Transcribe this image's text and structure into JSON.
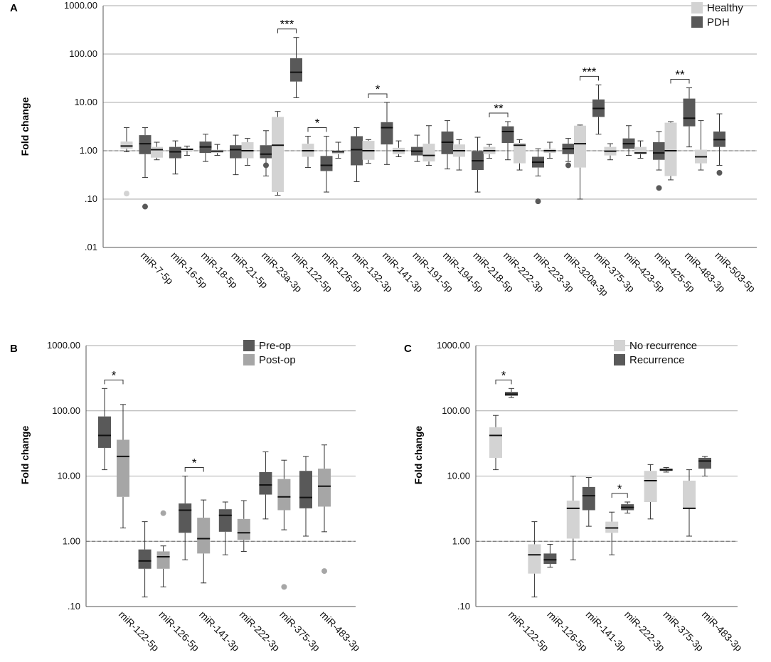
{
  "colors": {
    "light": "#d3d3d3",
    "dark": "#595959",
    "mid": "#a6a6a6",
    "axis": "#555555",
    "grid": "#aaaaaa"
  },
  "chart_data": [
    {
      "panel": "A",
      "type": "box",
      "ylabel": "Fold change",
      "yscale": "log",
      "ylim": [
        0.01,
        1000
      ],
      "yticks": [
        1000,
        100,
        10,
        1,
        0.1,
        0.01
      ],
      "yticklabels": [
        "1000.00",
        "100.00",
        "10.00",
        "1.00",
        ".10",
        ".01"
      ],
      "reference_line": 1,
      "legend": [
        {
          "name": "Healthy",
          "color": "light"
        },
        {
          "name": "PDH",
          "color": "dark"
        }
      ],
      "categories": [
        "miR-7-5p",
        "miR-16-5p",
        "miR-18-5p",
        "miR-21-5p",
        "miR-23a-3p",
        "miR-122-5p",
        "miR-126-5p",
        "miR-132-3p",
        "miR-141-3p",
        "miR-191-5p",
        "miR-194-5p",
        "miR-218-5p",
        "miR-222-3p",
        "miR-223-3p",
        "miR-320a-3p",
        "miR-375-3p",
        "miR-423-5p",
        "miR-425-5p",
        "miR-483-3p",
        "miR-503-5p"
      ],
      "series": [
        {
          "name": "Healthy",
          "color": "light",
          "boxes": [
            [
              0.95,
              1.1,
              1.25,
              1.55,
              3.0
            ],
            [
              0.65,
              0.72,
              1.05,
              1.2,
              1.5
            ],
            [
              0.8,
              1.0,
              1.07,
              1.12,
              1.25
            ],
            [
              0.8,
              0.9,
              0.98,
              1.05,
              1.35
            ],
            [
              0.5,
              0.7,
              1.0,
              1.5,
              1.8
            ],
            [
              0.12,
              0.14,
              1.3,
              5.0,
              6.5
            ],
            [
              0.45,
              0.75,
              1.0,
              1.4,
              2.0
            ],
            [
              0.7,
              0.85,
              0.95,
              1.0,
              1.5
            ],
            [
              0.55,
              0.65,
              1.0,
              1.6,
              1.7
            ],
            [
              0.75,
              0.85,
              1.0,
              1.15,
              1.6
            ],
            [
              0.5,
              0.6,
              0.8,
              1.4,
              3.3
            ],
            [
              0.4,
              0.75,
              1.0,
              1.35,
              1.7
            ],
            [
              0.7,
              0.85,
              1.0,
              1.2,
              1.35
            ],
            [
              0.4,
              0.55,
              1.3,
              1.45,
              1.7
            ],
            [
              0.7,
              0.9,
              1.0,
              1.1,
              1.5
            ],
            [
              0.1,
              0.45,
              1.4,
              3.3,
              3.4
            ],
            [
              0.65,
              0.8,
              0.98,
              1.2,
              1.4
            ],
            [
              0.7,
              0.85,
              0.9,
              1.2,
              1.6
            ],
            [
              0.25,
              0.3,
              1.0,
              3.8,
              4.0
            ],
            [
              0.4,
              0.55,
              0.75,
              1.05,
              4.2
            ]
          ],
          "outliers": [
            [
              0.13
            ],
            [],
            [],
            [],
            [],
            [],
            [],
            [],
            [],
            [],
            [],
            [],
            [],
            [],
            [],
            [],
            [],
            [],
            [],
            []
          ]
        },
        {
          "name": "PDH",
          "color": "dark",
          "boxes": [
            [
              0.28,
              0.85,
              1.4,
              2.1,
              3.0
            ],
            [
              0.33,
              0.7,
              0.95,
              1.2,
              1.6
            ],
            [
              0.6,
              0.9,
              1.2,
              1.55,
              2.2
            ],
            [
              0.32,
              0.7,
              1.05,
              1.3,
              2.1
            ],
            [
              0.3,
              0.7,
              0.85,
              1.3,
              2.6
            ],
            [
              12.5,
              27,
              42,
              82,
              220
            ],
            [
              0.14,
              0.38,
              0.5,
              0.78,
              2.0
            ],
            [
              0.23,
              0.5,
              1.05,
              2.0,
              3.0
            ],
            [
              0.52,
              1.35,
              3.0,
              3.9,
              10
            ],
            [
              0.6,
              0.8,
              0.98,
              1.2,
              2.1
            ],
            [
              0.42,
              0.85,
              1.5,
              2.5,
              4.2
            ],
            [
              0.14,
              0.4,
              0.62,
              0.98,
              1.9
            ],
            [
              0.65,
              1.45,
              2.5,
              3.2,
              4.0
            ],
            [
              0.3,
              0.45,
              0.58,
              0.75,
              1.1
            ],
            [
              0.6,
              0.85,
              1.1,
              1.4,
              1.8
            ],
            [
              2.2,
              5.0,
              7.5,
              11.5,
              23
            ],
            [
              0.8,
              1.1,
              1.4,
              1.8,
              3.3
            ],
            [
              0.4,
              0.65,
              0.9,
              1.5,
              2.5
            ],
            [
              1.2,
              3.2,
              4.7,
              12,
              20
            ],
            [
              0.5,
              1.2,
              1.7,
              2.5,
              5.8
            ]
          ],
          "outliers": [
            [
              0.07
            ],
            [],
            [],
            [],
            [
              0.5
            ],
            [],
            [],
            [],
            [],
            [],
            [],
            [],
            [],
            [
              0.09
            ],
            [
              0.5
            ],
            [],
            [],
            [
              0.17
            ],
            [],
            [
              0.35
            ]
          ]
        }
      ],
      "significance": [
        {
          "category_index": 5,
          "label": "***"
        },
        {
          "category_index": 6,
          "label": "*"
        },
        {
          "category_index": 8,
          "label": "*"
        },
        {
          "category_index": 12,
          "label": "**"
        },
        {
          "category_index": 15,
          "label": "***"
        },
        {
          "category_index": 18,
          "label": "**"
        }
      ]
    },
    {
      "panel": "B",
      "type": "box",
      "ylabel": "Fold change",
      "yscale": "log",
      "ylim": [
        0.1,
        1000
      ],
      "yticks": [
        1000,
        100,
        10,
        1,
        0.1
      ],
      "yticklabels": [
        "1000.00",
        "100.00",
        "10.00",
        "1.00",
        ".10"
      ],
      "reference_line": 1,
      "legend": [
        {
          "name": "Pre-op",
          "color": "dark"
        },
        {
          "name": "Post-op",
          "color": "mid"
        }
      ],
      "categories": [
        "miR-122-5p",
        "miR-126-5p",
        "miR-141-3p",
        "miR-222-3p",
        "miR-375-3p",
        "miR-483-3p"
      ],
      "series": [
        {
          "name": "Pre-op",
          "color": "dark",
          "boxes": [
            [
              12.5,
              27,
              42,
              82,
              220
            ],
            [
              0.14,
              0.38,
              0.5,
              0.75,
              2.0
            ],
            [
              0.52,
              1.35,
              3.0,
              3.8,
              10
            ],
            [
              0.62,
              1.4,
              2.5,
              3.1,
              4.0
            ],
            [
              2.2,
              5.2,
              7.3,
              11.5,
              23.5
            ],
            [
              1.2,
              3.2,
              4.7,
              12,
              20
            ]
          ],
          "outliers": [
            [],
            [],
            [],
            [],
            [],
            []
          ]
        },
        {
          "name": "Post-op",
          "color": "mid",
          "boxes": [
            [
              1.6,
              4.8,
              20,
              36,
              125
            ],
            [
              0.2,
              0.38,
              0.58,
              0.7,
              0.85
            ],
            [
              0.23,
              0.65,
              1.1,
              2.3,
              4.3
            ],
            [
              0.7,
              1.05,
              1.35,
              2.2,
              4.2
            ],
            [
              1.5,
              3.0,
              4.8,
              9.0,
              17.5
            ],
            [
              1.4,
              3.4,
              7.0,
              13,
              30
            ]
          ],
          "outliers": [
            [],
            [
              2.7
            ],
            [],
            [],
            [
              0.2
            ],
            [
              0.35
            ]
          ]
        }
      ],
      "significance": [
        {
          "category_index": 0,
          "label": "*"
        },
        {
          "category_index": 2,
          "label": "*"
        }
      ]
    },
    {
      "panel": "C",
      "type": "box",
      "ylabel": "Fold change",
      "yscale": "log",
      "ylim": [
        0.1,
        1000
      ],
      "yticks": [
        1000,
        100,
        10,
        1,
        0.1
      ],
      "yticklabels": [
        "1000.00",
        "100.00",
        "10.00",
        "1.00",
        ".10"
      ],
      "reference_line": 1,
      "legend": [
        {
          "name": "No recurrence",
          "color": "light"
        },
        {
          "name": "Recurrence",
          "color": "dark"
        }
      ],
      "categories": [
        "miR-122-5p",
        "miR-126-5p",
        "miR-141-3p",
        "miR-222-3p",
        "miR-375-3p",
        "miR-483-3p"
      ],
      "series": [
        {
          "name": "No recurrence",
          "color": "light",
          "boxes": [
            [
              12.5,
              19,
              42,
              56,
              85
            ],
            [
              0.14,
              0.32,
              0.62,
              0.9,
              2.0
            ],
            [
              0.52,
              1.1,
              3.2,
              4.2,
              10
            ],
            [
              0.62,
              1.35,
              1.6,
              2.0,
              2.8
            ],
            [
              2.2,
              4.0,
              8.5,
              12,
              15
            ],
            [
              1.2,
              3.2,
              3.2,
              8.5,
              12.5
            ]
          ],
          "outliers": [
            [],
            [],
            [],
            [],
            [],
            []
          ]
        },
        {
          "name": "Recurrence",
          "color": "dark",
          "boxes": [
            [
              160,
              170,
              180,
              195,
              220
            ],
            [
              0.4,
              0.45,
              0.52,
              0.65,
              0.9
            ],
            [
              1.7,
              3.0,
              5.0,
              6.8,
              9.5
            ],
            [
              2.7,
              3.0,
              3.3,
              3.7,
              4.0
            ],
            [
              11.5,
              12,
              12.5,
              13,
              13.5
            ],
            [
              10,
              13,
              17,
              19,
              20
            ]
          ],
          "outliers": [
            [],
            [],
            [],
            [],
            [],
            []
          ]
        }
      ],
      "significance": [
        {
          "category_index": 0,
          "label": "*"
        },
        {
          "category_index": 3,
          "label": "*"
        }
      ]
    }
  ]
}
